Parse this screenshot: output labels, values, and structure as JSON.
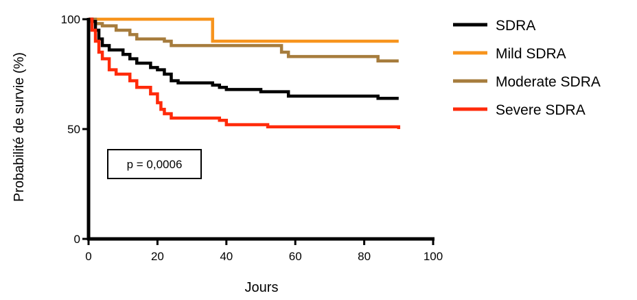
{
  "chart_data": {
    "type": "line",
    "step": true,
    "title": "",
    "xlabel": "Jours",
    "ylabel": "Probabilité de survie (%)",
    "xlim": [
      0,
      100
    ],
    "ylim": [
      0,
      100
    ],
    "xticks": [
      "0",
      "20",
      "40",
      "60",
      "80",
      "100"
    ],
    "yticks": [
      "0",
      "50",
      "100"
    ],
    "grid": false,
    "legend_position": "right",
    "annotation": "p = 0,0006",
    "series": [
      {
        "name": "SDRA",
        "color": "#000000",
        "x": [
          0,
          1,
          2,
          3,
          4,
          6,
          10,
          12,
          14,
          18,
          20,
          22,
          24,
          26,
          36,
          38,
          40,
          46,
          50,
          54,
          58,
          84,
          90
        ],
        "y": [
          100,
          99,
          95,
          91,
          88,
          86,
          84,
          82,
          80,
          78,
          77,
          75,
          72,
          71,
          70,
          69,
          68,
          68,
          67,
          67,
          65,
          64,
          64
        ]
      },
      {
        "name": "Mild SDRA",
        "color": "#F7941D",
        "x": [
          0,
          36,
          90
        ],
        "y": [
          100,
          90,
          90
        ]
      },
      {
        "name": "Moderate SDRA",
        "color": "#A67C3D",
        "x": [
          0,
          2,
          4,
          8,
          12,
          14,
          22,
          24,
          56,
          58,
          84,
          90
        ],
        "y": [
          100,
          98,
          97,
          95,
          93,
          91,
          90,
          88,
          85,
          83,
          81,
          81
        ]
      },
      {
        "name": "Severe SDRA",
        "color": "#FF2A0A",
        "x": [
          0,
          1,
          2,
          3,
          4,
          6,
          8,
          12,
          14,
          18,
          20,
          21,
          22,
          24,
          38,
          40,
          52,
          90
        ],
        "y": [
          100,
          95,
          90,
          85,
          82,
          77,
          75,
          72,
          69,
          66,
          62,
          59,
          57,
          55,
          54,
          52,
          51,
          50
        ]
      }
    ]
  }
}
